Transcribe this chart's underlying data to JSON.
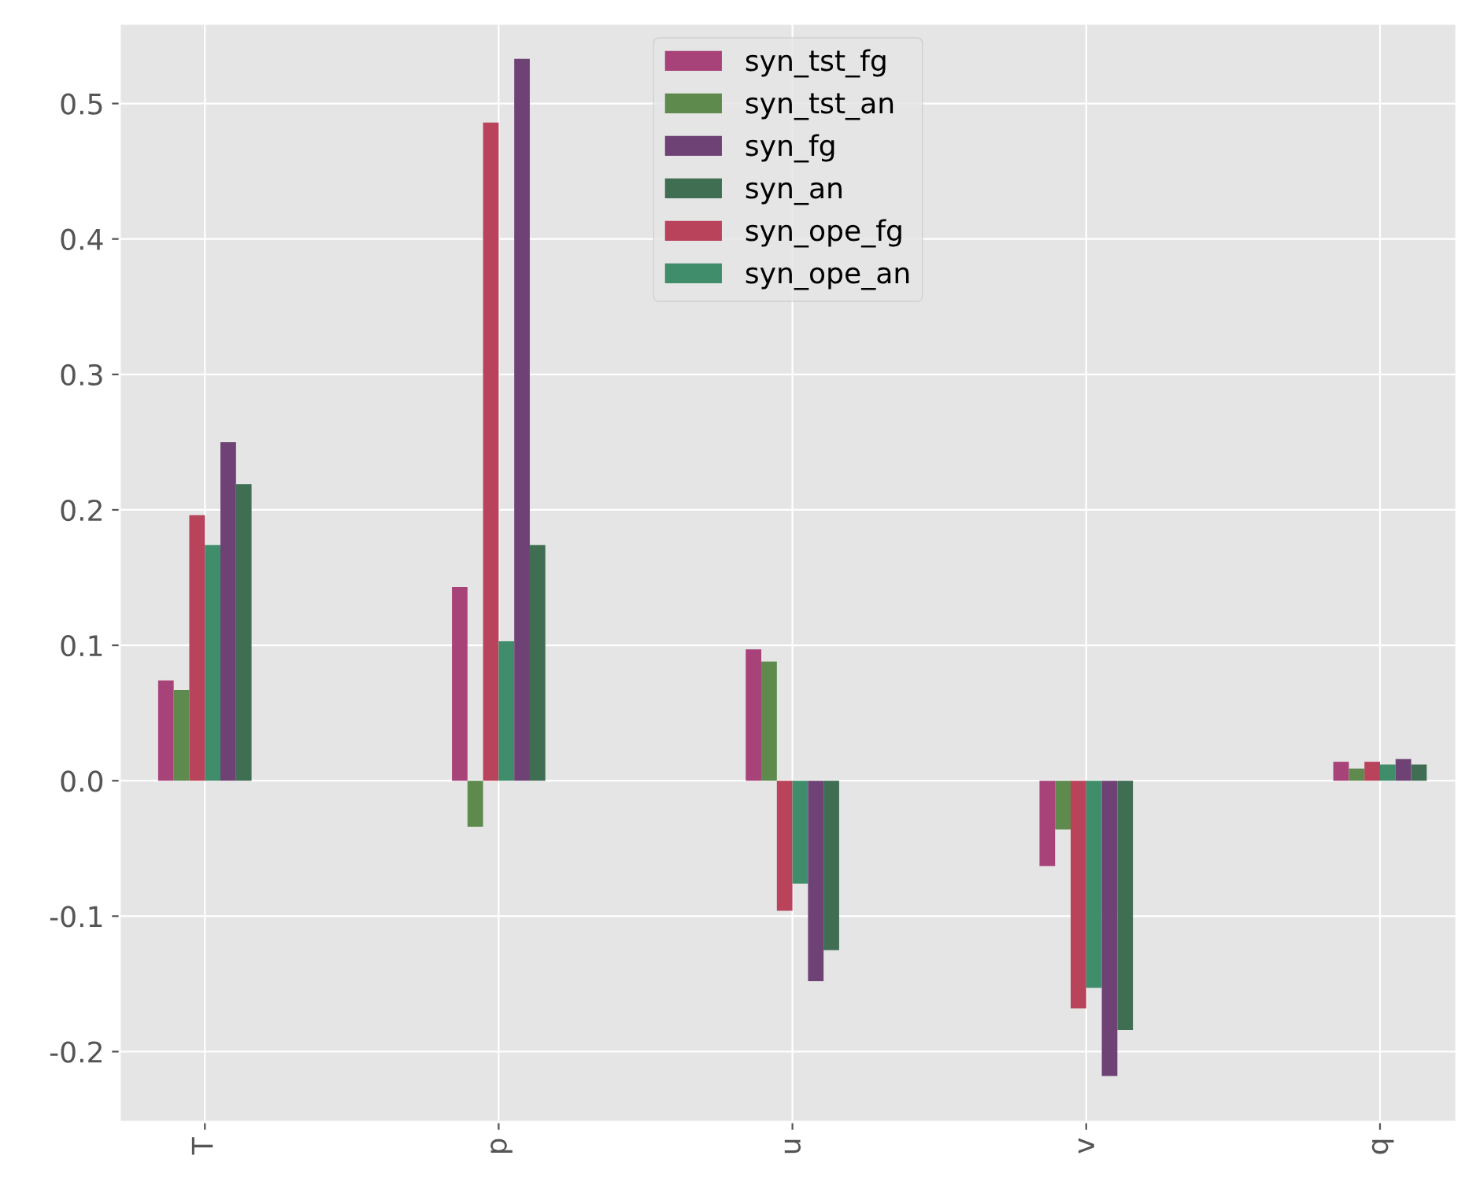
{
  "chart_data": {
    "type": "bar",
    "categories": [
      "T",
      "p",
      "u",
      "v",
      "q"
    ],
    "series": [
      {
        "name": "syn_tst_fg",
        "color": "#a8437a",
        "values": [
          0.074,
          0.143,
          0.097,
          -0.063,
          0.014
        ]
      },
      {
        "name": "syn_tst_an",
        "color": "#5e8a4e",
        "values": [
          0.067,
          -0.034,
          0.088,
          -0.036,
          0.009
        ]
      },
      {
        "name": "syn_ope_fg",
        "color": "#b9435a",
        "values": [
          0.196,
          0.486,
          -0.096,
          -0.168,
          0.014
        ]
      },
      {
        "name": "syn_ope_an",
        "color": "#3f8d6a",
        "values": [
          0.174,
          0.103,
          -0.076,
          -0.153,
          0.012
        ]
      },
      {
        "name": "syn_fg",
        "color": "#6e4275",
        "values": [
          0.25,
          0.533,
          -0.148,
          -0.218,
          0.016
        ]
      },
      {
        "name": "syn_an",
        "color": "#3f6e53",
        "values": [
          0.219,
          0.174,
          -0.125,
          -0.184,
          0.012
        ]
      }
    ],
    "ylim": [
      -0.252,
      0.559
    ],
    "yticks": [
      {
        "value": -0.2,
        "label": "-0.2"
      },
      {
        "value": -0.1,
        "label": "-0.1"
      },
      {
        "value": 0,
        "label": "0.0"
      },
      0.1,
      0.2,
      0.3,
      0.4,
      0.5
    ],
    "grid": true,
    "legend": "top"
  }
}
